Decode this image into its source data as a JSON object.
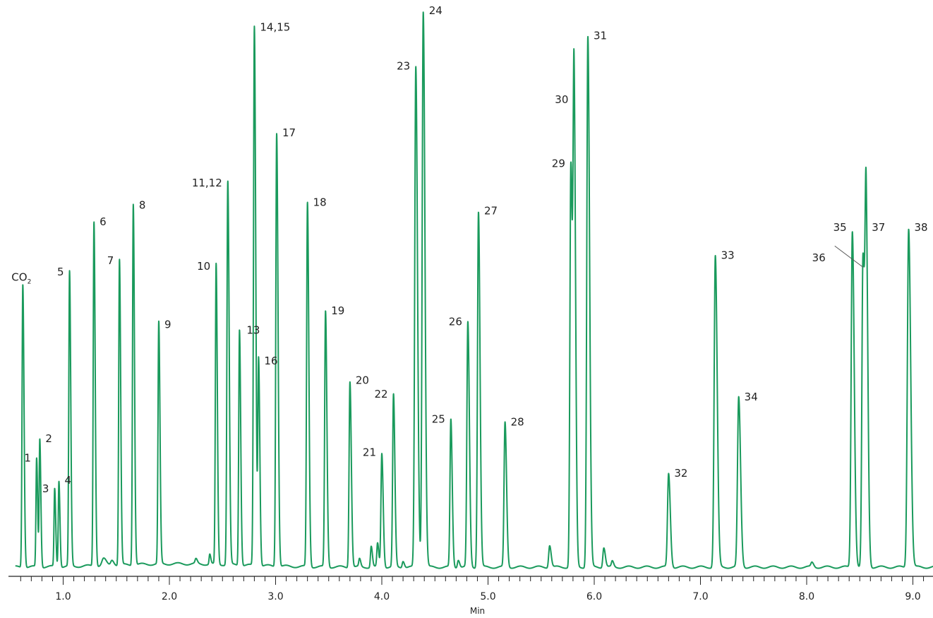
{
  "chart_data": {
    "type": "line",
    "title": "",
    "xlabel": "Min",
    "ylabel": "",
    "xlim": [
      0.55,
      9.2
    ],
    "ylim": [
      0,
      1.0
    ],
    "grid": false,
    "legend": "none",
    "line_color": "#1a9a5c",
    "x_ticks": [
      {
        "value": 1.0,
        "label": "1.0"
      },
      {
        "value": 2.0,
        "label": "2.0"
      },
      {
        "value": 3.0,
        "label": "3.0"
      },
      {
        "value": 4.0,
        "label": "4.0"
      },
      {
        "value": 5.0,
        "label": "5.0"
      },
      {
        "value": 6.0,
        "label": "6.0"
      },
      {
        "value": 7.0,
        "label": "7.0"
      },
      {
        "value": 8.0,
        "label": "8.0"
      },
      {
        "value": 9.0,
        "label": "9.0"
      }
    ],
    "peaks": [
      {
        "label": "CO2",
        "x": 0.62,
        "y": 0.51,
        "w": 0.007
      },
      {
        "label": "1",
        "x": 0.75,
        "y": 0.195,
        "w": 0.006
      },
      {
        "label": "2",
        "x": 0.78,
        "y": 0.23,
        "w": 0.006
      },
      {
        "label": "3",
        "x": 0.92,
        "y": 0.14,
        "w": 0.006
      },
      {
        "label": "4",
        "x": 0.96,
        "y": 0.155,
        "w": 0.006
      },
      {
        "label": "5",
        "x": 1.06,
        "y": 0.53,
        "w": 0.007
      },
      {
        "label": "6",
        "x": 1.29,
        "y": 0.62,
        "w": 0.007
      },
      {
        "label": "7",
        "x": 1.53,
        "y": 0.55,
        "w": 0.007
      },
      {
        "label": "8",
        "x": 1.66,
        "y": 0.65,
        "w": 0.007
      },
      {
        "label": "9",
        "x": 1.9,
        "y": 0.435,
        "w": 0.007
      },
      {
        "label": "10",
        "x": 2.44,
        "y": 0.54,
        "w": 0.007
      },
      {
        "label": "11,12",
        "x": 2.55,
        "y": 0.69,
        "w": 0.008
      },
      {
        "label": "13",
        "x": 2.66,
        "y": 0.425,
        "w": 0.007
      },
      {
        "label": "14,15",
        "x": 2.8,
        "y": 0.97,
        "w": 0.008
      },
      {
        "label": "16",
        "x": 2.84,
        "y": 0.37,
        "w": 0.007
      },
      {
        "label": "17",
        "x": 3.01,
        "y": 0.78,
        "w": 0.008
      },
      {
        "label": "18",
        "x": 3.3,
        "y": 0.655,
        "w": 0.008
      },
      {
        "label": "19",
        "x": 3.47,
        "y": 0.46,
        "w": 0.008
      },
      {
        "label": "20",
        "x": 3.7,
        "y": 0.335,
        "w": 0.008
      },
      {
        "label": "21",
        "x": 4.0,
        "y": 0.205,
        "w": 0.008
      },
      {
        "label": "22",
        "x": 4.11,
        "y": 0.31,
        "w": 0.008
      },
      {
        "label": "23",
        "x": 4.32,
        "y": 0.9,
        "w": 0.01
      },
      {
        "label": "24",
        "x": 4.39,
        "y": 1.0,
        "w": 0.01
      },
      {
        "label": "25",
        "x": 4.65,
        "y": 0.265,
        "w": 0.008
      },
      {
        "label": "26",
        "x": 4.81,
        "y": 0.44,
        "w": 0.009
      },
      {
        "label": "27",
        "x": 4.91,
        "y": 0.64,
        "w": 0.009
      },
      {
        "label": "28",
        "x": 5.16,
        "y": 0.26,
        "w": 0.009
      },
      {
        "label": "29",
        "x": 5.78,
        "y": 0.725,
        "w": 0.009
      },
      {
        "label": "30",
        "x": 5.81,
        "y": 0.84,
        "w": 0.009
      },
      {
        "label": "31",
        "x": 5.94,
        "y": 0.955,
        "w": 0.01
      },
      {
        "label": "32",
        "x": 6.7,
        "y": 0.168,
        "w": 0.01
      },
      {
        "label": "33",
        "x": 7.14,
        "y": 0.56,
        "w": 0.011
      },
      {
        "label": "34",
        "x": 7.36,
        "y": 0.305,
        "w": 0.011
      },
      {
        "label": "35",
        "x": 8.43,
        "y": 0.605,
        "w": 0.011
      },
      {
        "label": "36",
        "x": 8.53,
        "y": 0.555,
        "w": 0.01
      },
      {
        "label": "37",
        "x": 8.56,
        "y": 0.61,
        "w": 0.01
      },
      {
        "label": "38",
        "x": 8.96,
        "y": 0.61,
        "w": 0.012
      }
    ],
    "minor_peaks": [
      {
        "x": 1.38,
        "y": 0.012,
        "w": 0.015
      },
      {
        "x": 1.46,
        "y": 0.01,
        "w": 0.012
      },
      {
        "x": 2.25,
        "y": 0.008,
        "w": 0.008
      },
      {
        "x": 2.38,
        "y": 0.018,
        "w": 0.006
      },
      {
        "x": 3.79,
        "y": 0.014,
        "w": 0.007
      },
      {
        "x": 3.9,
        "y": 0.038,
        "w": 0.007
      },
      {
        "x": 3.96,
        "y": 0.042,
        "w": 0.007
      },
      {
        "x": 4.2,
        "y": 0.012,
        "w": 0.008
      },
      {
        "x": 4.72,
        "y": 0.014,
        "w": 0.008
      },
      {
        "x": 5.58,
        "y": 0.04,
        "w": 0.009
      },
      {
        "x": 6.09,
        "y": 0.036,
        "w": 0.009
      },
      {
        "x": 6.17,
        "y": 0.01,
        "w": 0.008
      },
      {
        "x": 8.05,
        "y": 0.008,
        "w": 0.01
      }
    ]
  }
}
